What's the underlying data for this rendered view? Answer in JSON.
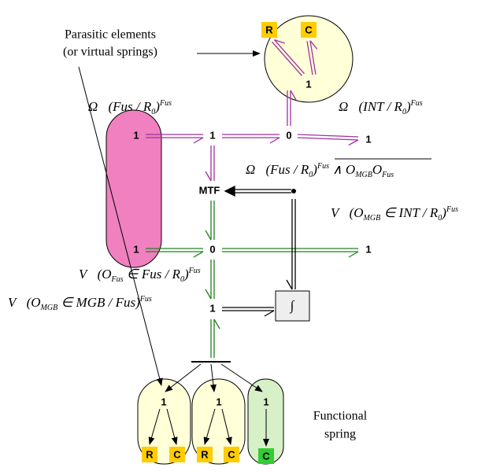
{
  "annotations": {
    "parasitic": [
      "Parasitic elements",
      "(or virtual springs)"
    ],
    "functional": [
      "Functional",
      "spring"
    ]
  },
  "top_element": {
    "r": "R",
    "c": "C",
    "junction": "1"
  },
  "junctions": [
    "1",
    "1",
    "0",
    "1",
    "MTF",
    "1",
    "0",
    "1",
    "1"
  ],
  "integrator": "∫",
  "labels": [
    [
      "Ω⃗(Fus / R",
      "0",
      ")",
      "Fus"
    ],
    [
      "Ω⃗(INT / R",
      "0",
      ")",
      "Fus"
    ],
    [
      "Ω⃗(Fus / R",
      "0",
      ")",
      "Fus",
      " ∧ O",
      "MGB",
      "O",
      "Fus"
    ],
    [
      "V⃗(O",
      "MGB",
      " ∈ INT / R",
      "0",
      ")",
      "Fus"
    ],
    [
      "V⃗(O",
      "Fus",
      " ∈ Fus / R",
      "0",
      ")",
      "Fus"
    ],
    [
      "V⃗(O",
      "MGB",
      " ∈ MGB / Fus)",
      "Fus"
    ]
  ],
  "bottom_elements": [
    {
      "junction": "1",
      "r": "R",
      "c": "C"
    },
    {
      "junction": "1",
      "r": "R",
      "c": "C"
    },
    {
      "junction": "1",
      "c": "C"
    }
  ]
}
